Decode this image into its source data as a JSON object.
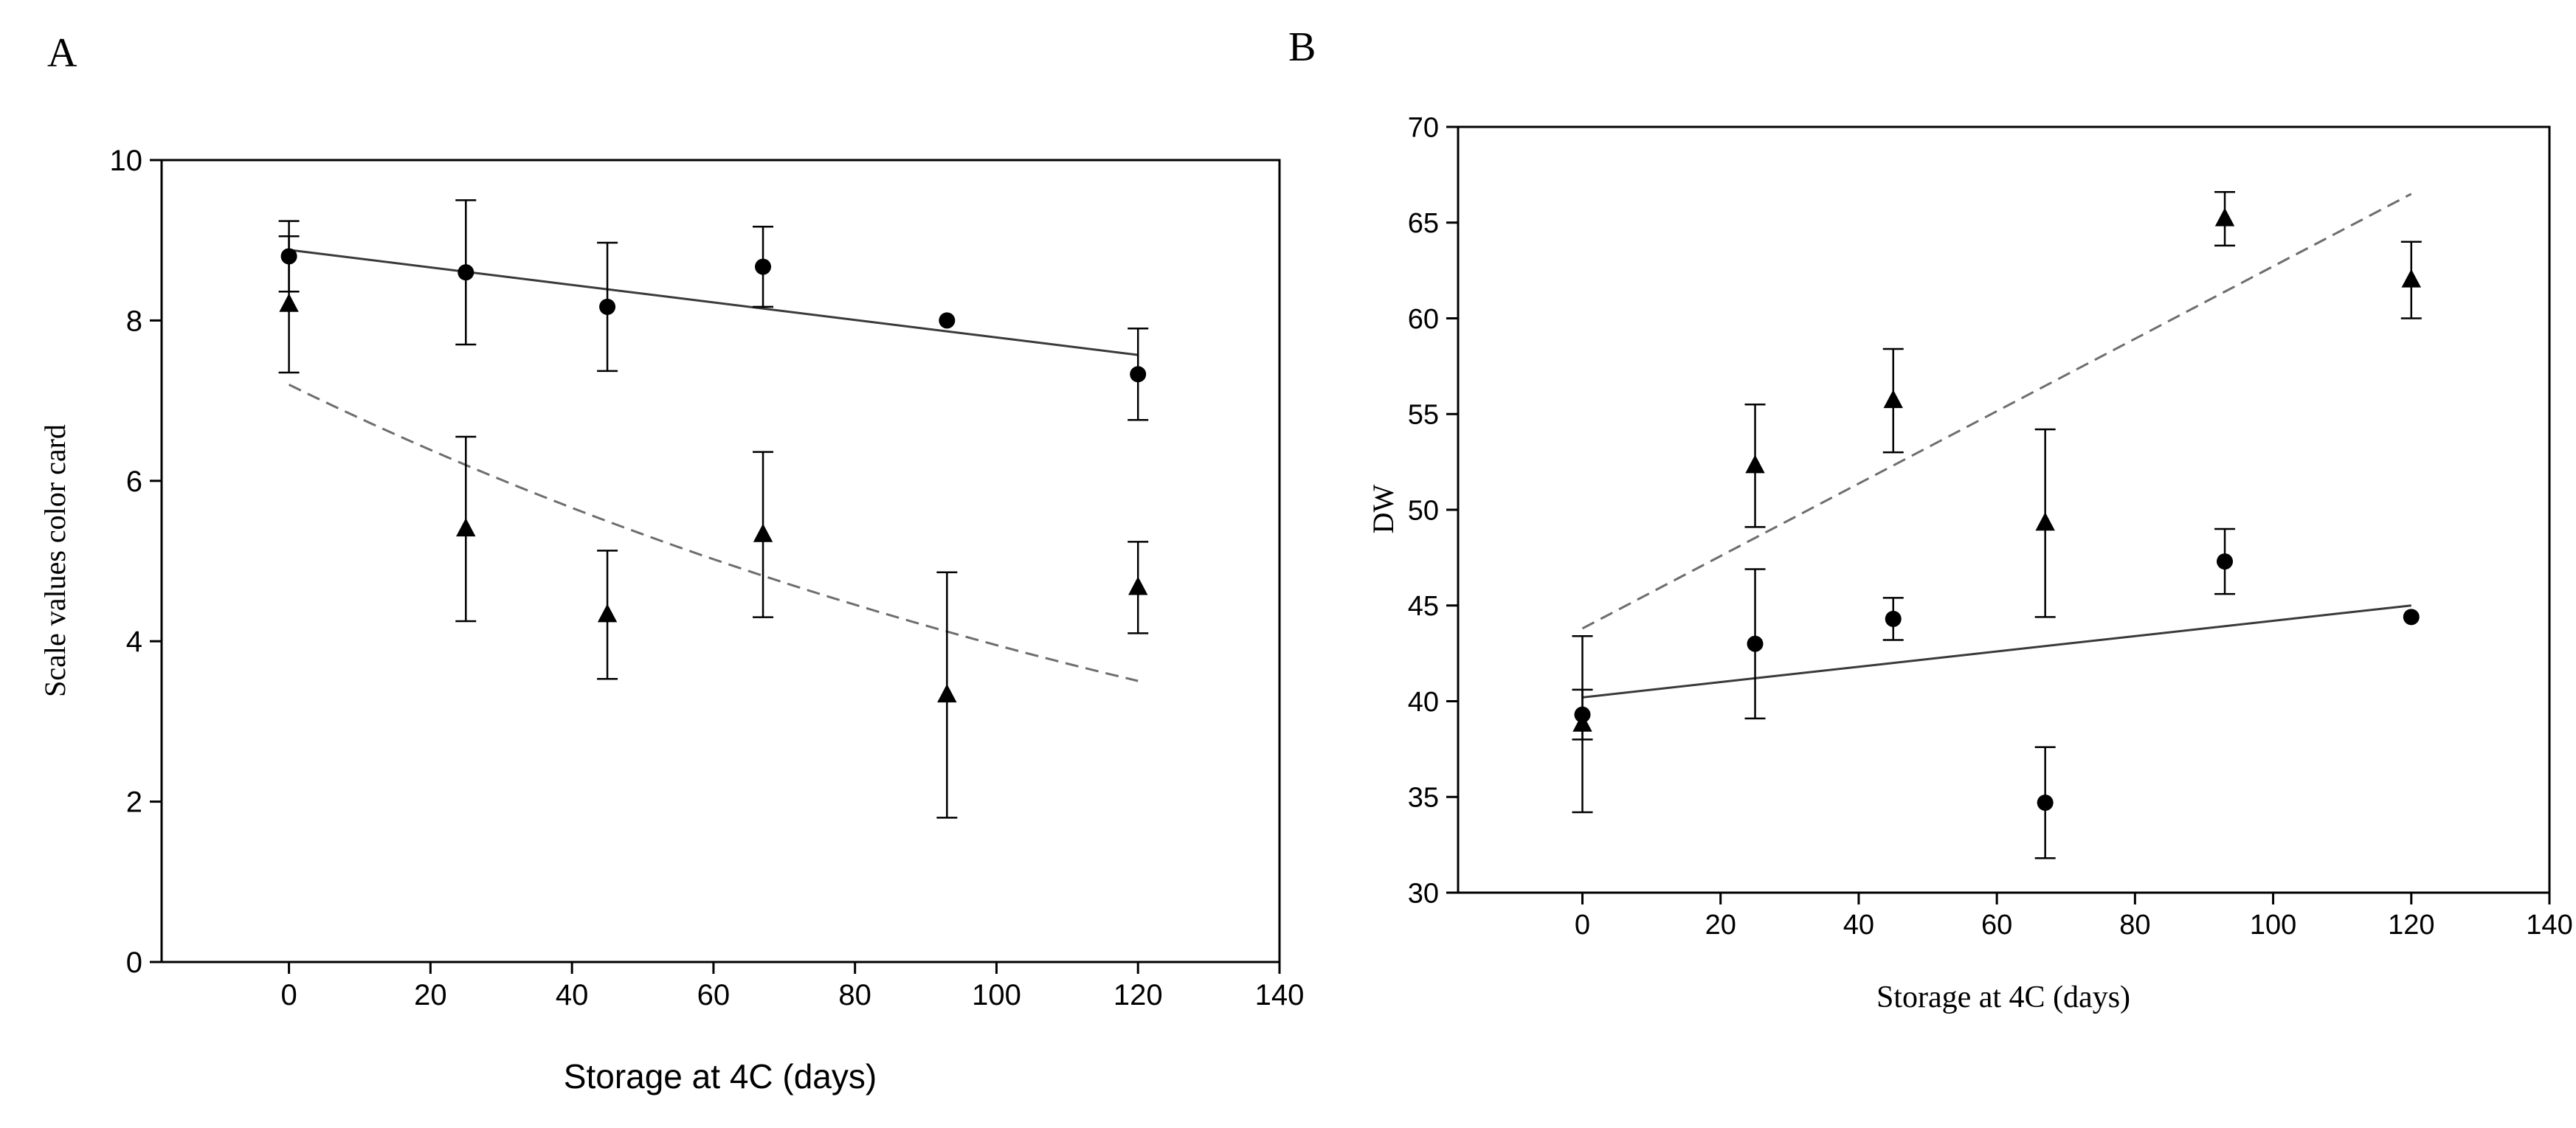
{
  "chart_data": [
    {
      "panel": "A",
      "type": "scatter",
      "title": "",
      "xlabel": "Storage at 4C (days)",
      "ylabel": "Scale values color card",
      "xlim": [
        -18,
        140
      ],
      "ylim": [
        0,
        10
      ],
      "xticks": [
        0,
        20,
        40,
        60,
        80,
        100,
        120,
        140
      ],
      "yticks": [
        0,
        2,
        4,
        6,
        8,
        10
      ],
      "xtick_labels": [
        "0",
        "20",
        "40",
        "60",
        "80",
        "100",
        "120",
        "140"
      ],
      "ytick_labels": [
        "0",
        "2",
        "4",
        "6",
        "8",
        "10"
      ],
      "series": [
        {
          "name": "circle series",
          "marker": "circle",
          "points": [
            {
              "x": 0,
              "y": 8.8,
              "err": 0.44
            },
            {
              "x": 25,
              "y": 8.6,
              "err": 0.9
            },
            {
              "x": 45,
              "y": 8.17,
              "err": 0.8
            },
            {
              "x": 67,
              "y": 8.67,
              "err": 0.5
            },
            {
              "x": 93,
              "y": 8.0,
              "err": 0.0
            },
            {
              "x": 120,
              "y": 7.33,
              "err": 0.57
            }
          ],
          "fit": {
            "style": "solid",
            "kind": "linear",
            "x": [
              0,
              120
            ],
            "y": [
              8.88,
              7.57
            ]
          }
        },
        {
          "name": "triangle series",
          "marker": "triangle",
          "points": [
            {
              "x": 0,
              "y": 8.2,
              "err": 0.85
            },
            {
              "x": 25,
              "y": 5.4,
              "err": 1.15
            },
            {
              "x": 45,
              "y": 4.33,
              "err": 0.8
            },
            {
              "x": 67,
              "y": 5.33,
              "err": 1.03
            },
            {
              "x": 93,
              "y": 3.33,
              "err": 1.53
            },
            {
              "x": 120,
              "y": 4.67,
              "err": 0.57
            }
          ],
          "fit": {
            "style": "dashed",
            "kind": "exponential",
            "a": 7.2,
            "b": 0.006
          }
        }
      ]
    },
    {
      "panel": "B",
      "type": "scatter",
      "title": "",
      "xlabel": "Storage at 4C (days)",
      "ylabel": "DW",
      "xlim": [
        -18,
        140
      ],
      "ylim": [
        30,
        70
      ],
      "xticks": [
        0,
        20,
        40,
        60,
        80,
        100,
        120,
        140
      ],
      "yticks": [
        30,
        35,
        40,
        45,
        50,
        55,
        60,
        65,
        70
      ],
      "xtick_labels": [
        "0",
        "20",
        "40",
        "60",
        "80",
        "100",
        "120",
        "140"
      ],
      "ytick_labels": [
        "30",
        "35",
        "40",
        "45",
        "50",
        "55",
        "60",
        "65",
        "70"
      ],
      "series": [
        {
          "name": "circle series",
          "marker": "circle",
          "points": [
            {
              "x": 0,
              "y": 39.3,
              "err": 1.3
            },
            {
              "x": 25,
              "y": 43.0,
              "err": 3.9
            },
            {
              "x": 45,
              "y": 44.3,
              "err": 1.1
            },
            {
              "x": 67,
              "y": 34.7,
              "err": 2.9
            },
            {
              "x": 93,
              "y": 47.3,
              "err": 1.7
            },
            {
              "x": 120,
              "y": 44.4,
              "err": 0.0
            }
          ],
          "fit": {
            "style": "solid",
            "kind": "linear",
            "x": [
              0,
              120
            ],
            "y": [
              40.2,
              45.0
            ]
          }
        },
        {
          "name": "triangle series",
          "marker": "triangle",
          "points": [
            {
              "x": 0,
              "y": 38.8,
              "err": 4.6
            },
            {
              "x": 25,
              "y": 52.3,
              "err": 3.2
            },
            {
              "x": 45,
              "y": 55.7,
              "err": 2.7
            },
            {
              "x": 67,
              "y": 49.3,
              "err": 4.9
            },
            {
              "x": 93,
              "y": 65.2,
              "err": 1.4
            },
            {
              "x": 120,
              "y": 62.0,
              "err": 2.0
            }
          ],
          "fit": {
            "style": "dashed",
            "kind": "linear",
            "x": [
              0,
              120
            ],
            "y": [
              43.8,
              66.5
            ]
          }
        }
      ]
    }
  ]
}
